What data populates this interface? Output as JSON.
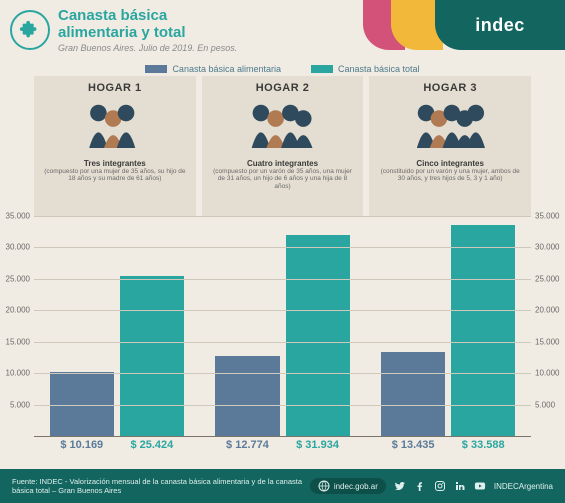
{
  "colors": {
    "bg": "#f0ece3",
    "panel_bg": "#e4ded2",
    "teal": "#2aa6a0",
    "teal_dark": "#13665f",
    "bar1": "#5b7a9a",
    "bar2": "#2aa6a0",
    "grid": "#cfc9bc",
    "pink": "#d3527a",
    "yellow": "#f2b83a"
  },
  "header": {
    "title_l1": "Canasta básica",
    "title_l2": "alimentaria y total",
    "subtitle": "Gran Buenos Aires. Julio de 2019. En pesos.",
    "brand": "indec"
  },
  "legend": {
    "series1": "Canasta básica alimentaria",
    "series2": "Canasta básica total"
  },
  "chart": {
    "type": "bar",
    "ymax": 35000,
    "ytick_step": 5000,
    "ytick_labels": [
      "5.000",
      "10.000",
      "15.000",
      "20.000",
      "25.000",
      "30.000",
      "35.000"
    ],
    "groups": [
      {
        "title": "HOGAR 1",
        "sub": "Tres integrantes",
        "desc": "(compuesto por una mujer de 35 años, su hijo de 18 años y su madre de 61 años)",
        "v1": 10169,
        "v2": 25424,
        "v1_label": "$ 10.169",
        "v2_label": "$ 25.424"
      },
      {
        "title": "HOGAR 2",
        "sub": "Cuatro integrantes",
        "desc": "(compuesto por un varón de 35 años, una mujer de 31 años, un hijo de 6 años y una hija de 8 años)",
        "v1": 12774,
        "v2": 31934,
        "v1_label": "$ 12.774",
        "v2_label": "$ 31.934"
      },
      {
        "title": "HOGAR 3",
        "sub": "Cinco integrantes",
        "desc": "(constituido por un varón y una mujer, ambos de 30 años, y tres hijos de 5, 3 y 1 año)",
        "v1": 13435,
        "v2": 33588,
        "v1_label": "$ 13.435",
        "v2_label": "$ 33.588"
      }
    ]
  },
  "footer": {
    "source": "Fuente: INDEC - Valorización mensual de la canasta básica alimentaria y de la canasta básica total – Gran Buenos Aires",
    "site": "indec.gob.ar",
    "handle": "INDECArgentina"
  }
}
